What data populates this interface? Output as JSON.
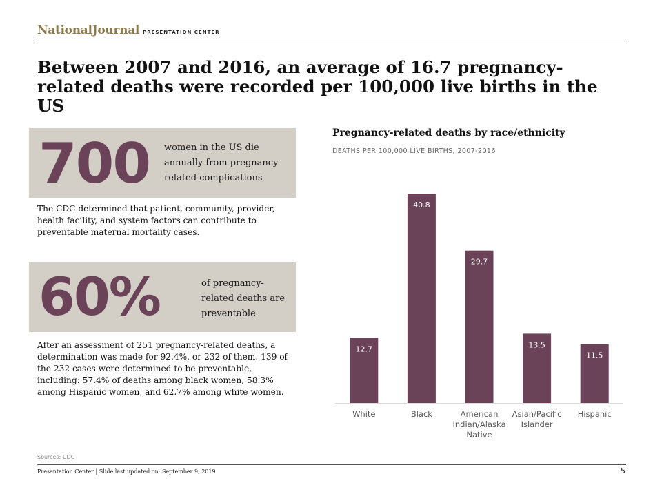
{
  "header": {
    "brand_name": "NationalJournal",
    "brand_sub": "PRESENTATION CENTER",
    "headline": "Between 2007 and 2016, an average of 16.7 pregnancy-related deaths were recorded per 100,000 live births in the US"
  },
  "stats": [
    {
      "value": "700",
      "description": "women in the US die annually from pregnancy-related complications"
    },
    {
      "value": "60%",
      "description": "of pregnancy-related deaths are preventable"
    }
  ],
  "paragraphs": {
    "p1": "The CDC determined that patient, community, provider, health facility, and system factors can contribute to preventable maternal mortality cases.",
    "p2": "After an assessment of 251 pregnancy-related deaths, a determination was made for 92.4%, or 232 of them. 139 of the 232 cases were determined to be preventable, including: 57.4% of deaths among black women, 58.3% among Hispanic women, and 62.7% among white women."
  },
  "chart_data": {
    "type": "bar",
    "title": "Pregnancy-related deaths by race/ethnicity",
    "subtitle": "DEATHS PER 100,000 LIVE BIRTHS, 2007-2016",
    "categories": [
      [
        "White"
      ],
      [
        "Black"
      ],
      [
        "American",
        "Indian/Alaska",
        "Native"
      ],
      [
        "Asian/Pacific",
        "Islander"
      ],
      [
        "Hispanic"
      ]
    ],
    "values": [
      12.7,
      40.8,
      29.7,
      13.5,
      11.5
    ],
    "value_labels": [
      "12.7",
      "40.8",
      "29.7",
      "13.5",
      "11.5"
    ],
    "ylim": [
      0,
      40.8
    ],
    "grid": false,
    "colors": {
      "bar": "#6b4358",
      "label": "#ffffff",
      "axis": "#d9d9d9",
      "tick": "#595959"
    }
  },
  "footer": {
    "sources": "Sources: CDC",
    "text": "Presentation Center | Slide last updated on: September 9, 2019",
    "page_number": "5"
  }
}
